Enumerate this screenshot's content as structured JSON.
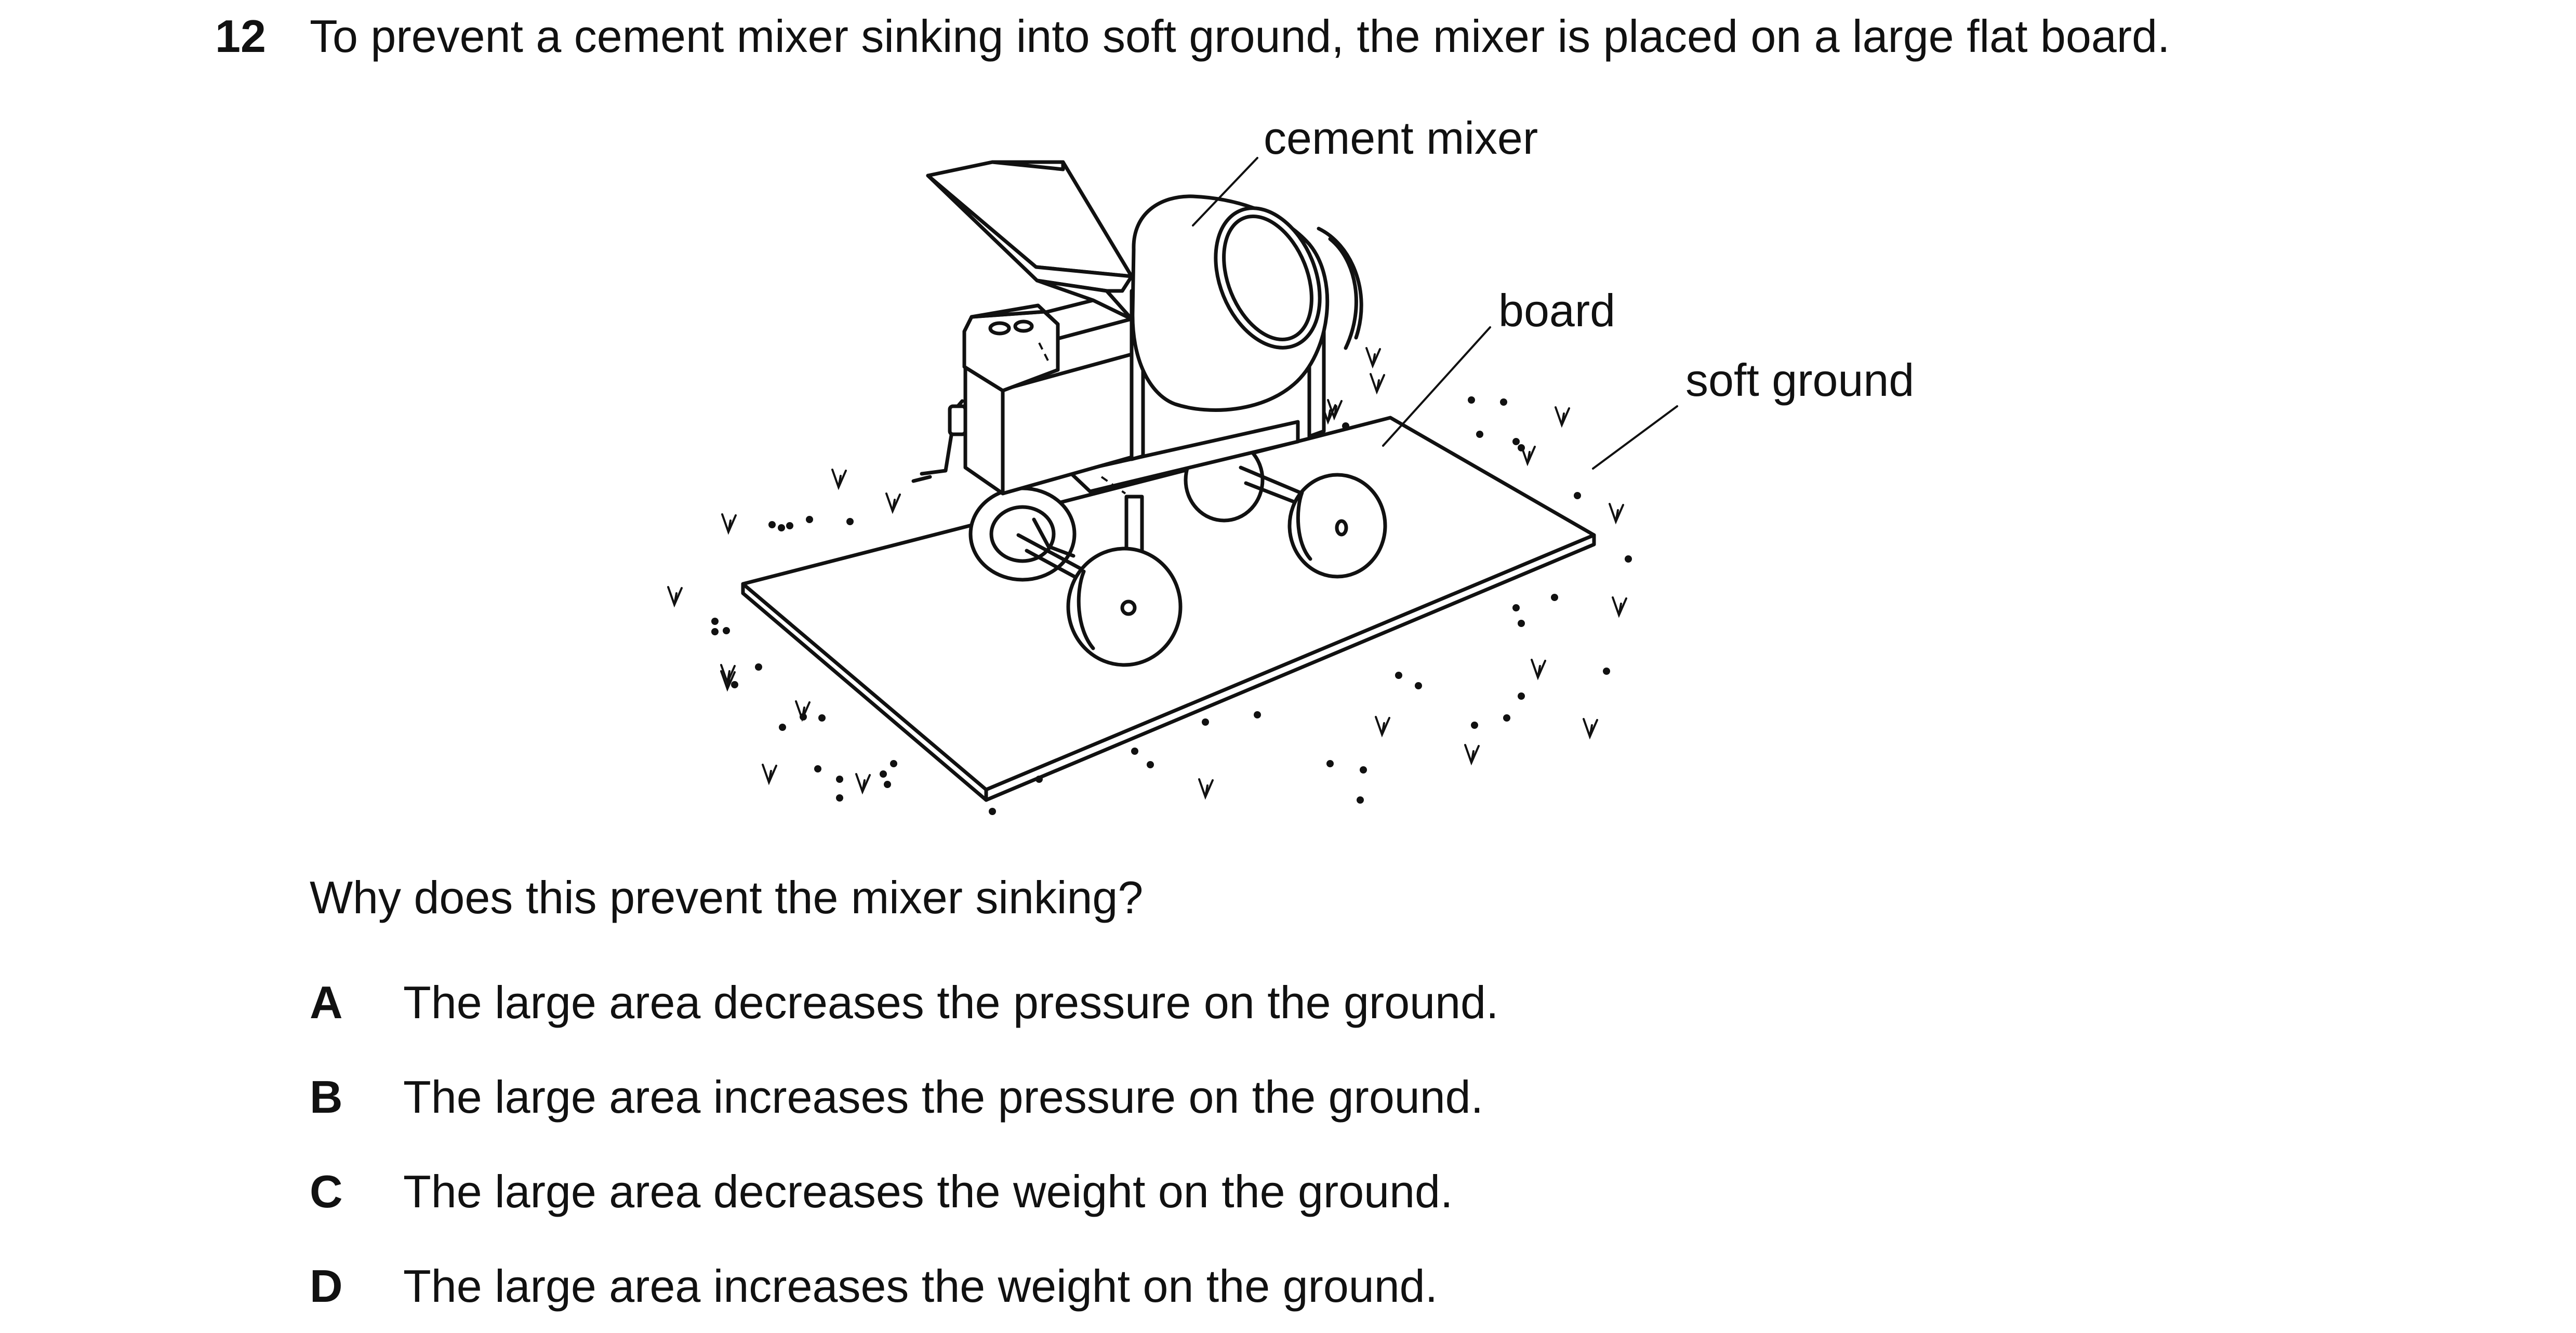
{
  "question": {
    "number": "12",
    "stem": "To prevent a cement mixer sinking into soft ground, the mixer is placed on a large flat board.",
    "prompt": "Why does this prevent the mixer sinking?"
  },
  "figure": {
    "labels": {
      "mixer": "cement mixer",
      "board": "board",
      "ground": "soft ground"
    }
  },
  "options": [
    {
      "letter": "A",
      "text": "The large area decreases the pressure on the ground."
    },
    {
      "letter": "B",
      "text": "The large area increases the pressure on the ground."
    },
    {
      "letter": "C",
      "text": "The large area decreases the weight on the ground."
    },
    {
      "letter": "D",
      "text": "The large area increases the weight on the ground."
    }
  ]
}
